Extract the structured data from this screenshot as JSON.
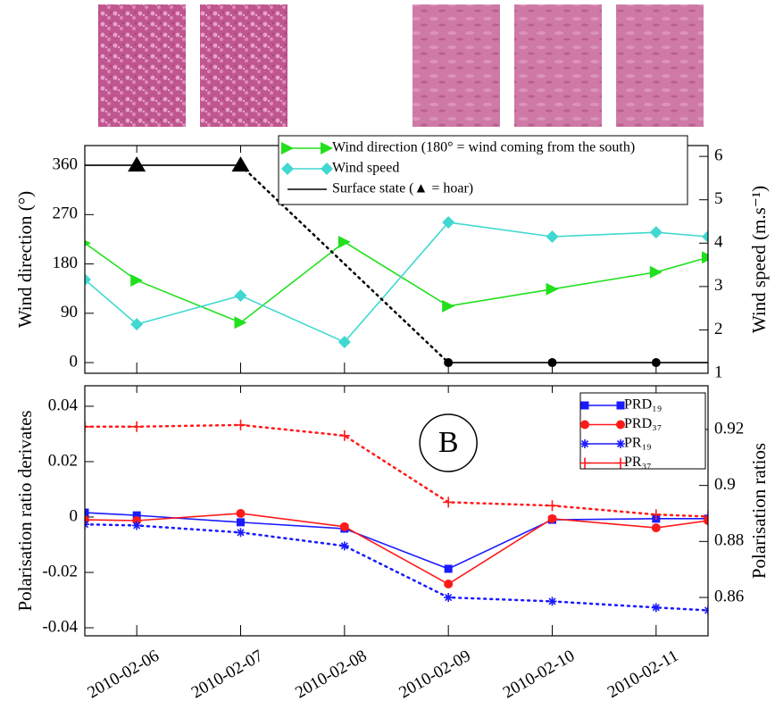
{
  "chart_data": [
    {
      "type": "line",
      "y_label": "Wind direction (°)",
      "y2_label": "Wind speed (m.s⁻¹)",
      "x": [
        5.5,
        6,
        7,
        8,
        9,
        10,
        11,
        11.5
      ],
      "xlim": [
        5.5,
        11.5
      ],
      "xticks": [
        6,
        7,
        8,
        9,
        10,
        11
      ],
      "ylim": [
        -19.5,
        396
      ],
      "yticks": [
        0,
        90,
        180,
        270,
        360
      ],
      "y2lim": [
        1,
        6.25
      ],
      "y2ticks": [
        1,
        2,
        3,
        4,
        5,
        6
      ],
      "legend": "top-right",
      "series": [
        {
          "name": "Wind direction (180° = wind coming from the south)",
          "color": "#22e01e",
          "marker": "triangle-right",
          "dash": "solid",
          "values": [
            218,
            150,
            73,
            220,
            103,
            134,
            165,
            192
          ]
        },
        {
          "name": "Wind speed",
          "color": "#40d8d0",
          "marker": "diamond",
          "dash": "solid",
          "axis": "y2",
          "values": [
            3.16,
            2.13,
            2.79,
            1.72,
            4.48,
            4.15,
            4.25,
            4.15
          ]
        },
        {
          "name": "Surface state (▲ = hoar)",
          "color": "#000000",
          "marker": "none",
          "dash": "solid",
          "gap_line": "dotted",
          "markers": [
            null,
            "triangle",
            "triangle",
            null,
            "circle",
            "circle",
            "circle",
            null
          ],
          "values": [
            360,
            360,
            360,
            null,
            0,
            0,
            0,
            0
          ]
        }
      ]
    },
    {
      "type": "line",
      "y_label": "Polarisation ratio derivates",
      "y2_label": "Polarisation ratios",
      "annotation": "B",
      "x": [
        5.5,
        6,
        7,
        8,
        9,
        10,
        11,
        11.5
      ],
      "xlim": [
        5.5,
        11.5
      ],
      "xticks": [
        {
          "value": 6,
          "label": "2010-02-06"
        },
        {
          "value": 7,
          "label": "2010-02-07"
        },
        {
          "value": 8,
          "label": "2010-02-08"
        },
        {
          "value": 9,
          "label": "2010-02-09"
        },
        {
          "value": 10,
          "label": "2010-02-10"
        },
        {
          "value": 11,
          "label": "2010-02-11"
        }
      ],
      "ylim": [
        -0.0429,
        0.0474
      ],
      "yticks": [
        0.04,
        0.02,
        0,
        -0.02,
        -0.04
      ],
      "y2lim": [
        0.8463,
        0.9356
      ],
      "y2ticks": [
        0.92,
        0.9,
        0.88,
        0.86
      ],
      "legend": "top-right",
      "series": [
        {
          "name": "PRD₁₉",
          "color": "#1a1aff",
          "marker": "square",
          "dash": "solid",
          "values": [
            0.0016,
            0.0006,
            -0.0019,
            -0.0042,
            -0.0187,
            -0.001,
            -0.0006,
            -0.0006
          ]
        },
        {
          "name": "PRD₃₇",
          "color": "#ff1a1a",
          "marker": "circle",
          "dash": "solid",
          "values": [
            -0.001,
            -0.0013,
            0.0013,
            -0.0035,
            -0.0242,
            -0.0006,
            -0.0039,
            -0.0013
          ]
        },
        {
          "name": "PR₁₉",
          "color": "#1a1aff",
          "marker": "star",
          "dash": "dotted",
          "axis": "y2",
          "values": [
            0.8861,
            0.8857,
            0.8832,
            0.8784,
            0.86,
            0.8586,
            0.8564,
            0.8554
          ]
        },
        {
          "name": "PR₃₇",
          "color": "#ff1a1a",
          "marker": "plus",
          "dash": "dotted",
          "axis": "y2",
          "values": [
            0.921,
            0.921,
            0.9216,
            0.9178,
            0.894,
            0.8928,
            0.8896,
            0.8889
          ]
        }
      ]
    }
  ]
}
